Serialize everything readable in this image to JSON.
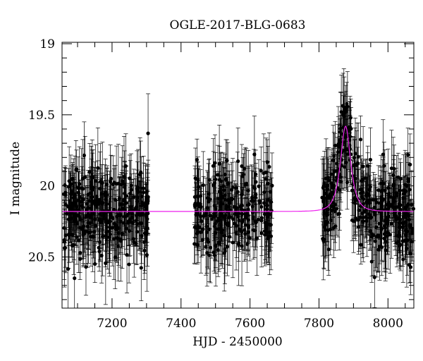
{
  "chart_data": {
    "type": "scatter",
    "title": "OGLE-2017-BLG-0683",
    "xlabel": "HJD - 2450000",
    "ylabel": "I magnitude",
    "xlim": [
      7055,
      8075
    ],
    "ylim": [
      18.99,
      20.86
    ],
    "y_inverted": true,
    "grid": false,
    "x_ticks": [
      7200,
      7400,
      7600,
      7800,
      8000
    ],
    "x_tick_labels": [
      "7200",
      "7400",
      "7600",
      "7800",
      "8000"
    ],
    "y_ticks": [
      19,
      19.5,
      20,
      20.5
    ],
    "y_tick_labels": [
      "19",
      "19.5",
      "20",
      "20.5"
    ],
    "model": {
      "type": "microlensing-model-curve",
      "color": "#ee22ee",
      "baseline_mag": 20.18,
      "peak_mag": 19.58,
      "t0": 7877,
      "tE": 22
    },
    "data_points": {
      "color": "#000000",
      "seasons": [
        {
          "start": 7060,
          "end": 7305,
          "count": 330
        },
        {
          "start": 7438,
          "end": 7665,
          "count": 260
        },
        {
          "start": 7808,
          "end": 8075,
          "count": 360
        }
      ],
      "scatter_mag": 0.15,
      "typical_error_mag": 0.2
    }
  }
}
